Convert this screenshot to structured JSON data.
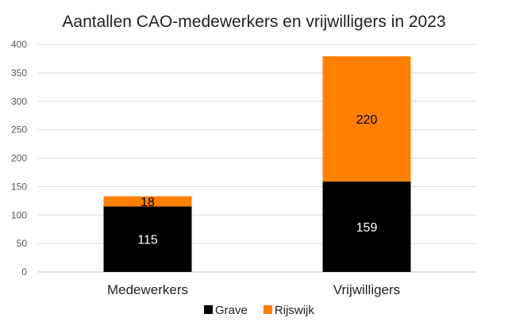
{
  "chart_data": {
    "type": "bar",
    "stacked": true,
    "title": "Aantallen CAO-medewerkers en vrijwilligers in 2023",
    "categories": [
      "Medewerkers",
      "Vrijwilligers"
    ],
    "series": [
      {
        "name": "Grave",
        "values": [
          115,
          159
        ],
        "color": "#000000",
        "label_color": "#ffffff"
      },
      {
        "name": "Rijswijk",
        "values": [
          18,
          220
        ],
        "color": "#ff8000",
        "label_color": "#000000"
      }
    ],
    "ylim": [
      0,
      400
    ],
    "yticks": [
      0,
      50,
      100,
      150,
      200,
      250,
      300,
      350,
      400
    ],
    "grid": true,
    "legend_position": "bottom",
    "xlabel": "",
    "ylabel": ""
  }
}
